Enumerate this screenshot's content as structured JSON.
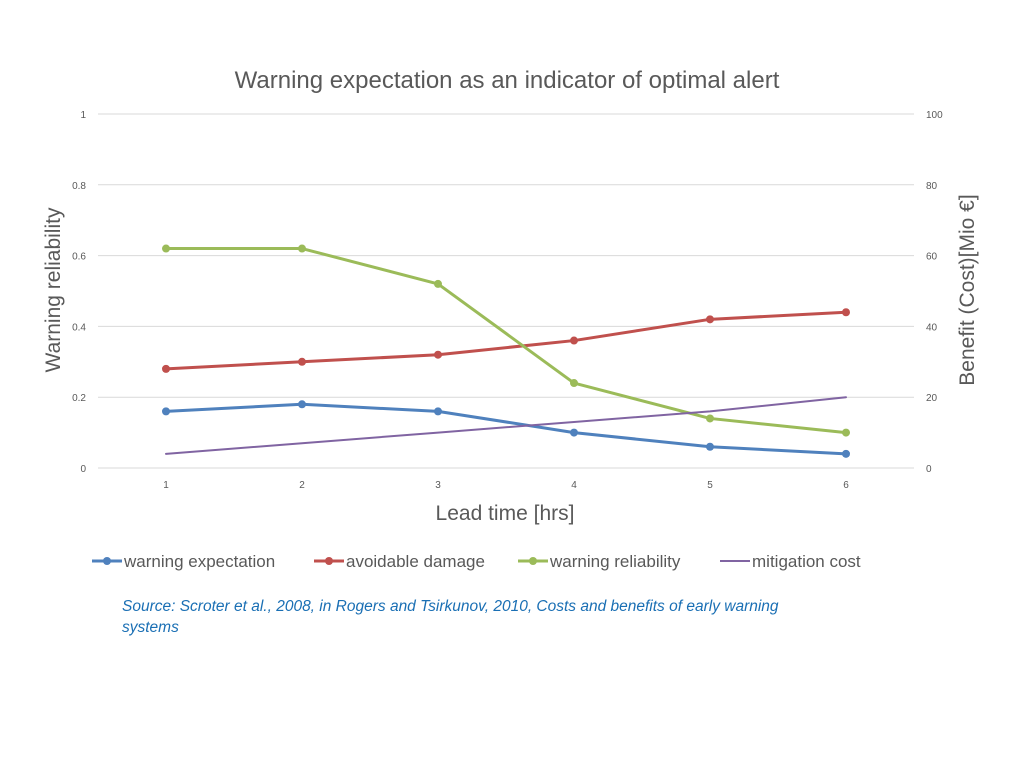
{
  "chart_data": {
    "type": "line",
    "title": "Warning expectation as an indicator of optimal alert",
    "xlabel": "Lead time [hrs]",
    "ylabel_left": "Warning reliability",
    "ylabel_right": "Benefit (Cost)[Mio €]",
    "categories": [
      "1",
      "2",
      "3",
      "4",
      "5",
      "6"
    ],
    "x": [
      1,
      2,
      3,
      4,
      5,
      6
    ],
    "ylim_left": [
      0,
      1
    ],
    "ylim_right": [
      0,
      100
    ],
    "yticks_left": [
      "0",
      "0.2",
      "0.4",
      "0.6",
      "0.8",
      "1"
    ],
    "yticks_right": [
      "0",
      "20",
      "40",
      "60",
      "80",
      "100"
    ],
    "grid": true,
    "legend_position": "bottom",
    "series": [
      {
        "name": "warning expectation",
        "axis": "left",
        "color": "#4f81bd",
        "markers": true,
        "values": [
          0.16,
          0.18,
          0.16,
          0.1,
          0.06,
          0.04
        ]
      },
      {
        "name": "avoidable damage",
        "axis": "left",
        "color": "#c0504d",
        "markers": true,
        "values": [
          0.28,
          0.3,
          0.32,
          0.36,
          0.42,
          0.44
        ]
      },
      {
        "name": "warning reliability",
        "axis": "left",
        "color": "#9bbb59",
        "markers": true,
        "values": [
          0.62,
          0.62,
          0.52,
          0.24,
          0.14,
          0.1
        ]
      },
      {
        "name": "mitigation cost",
        "axis": "right",
        "color": "#8064a2",
        "markers": false,
        "values": [
          4,
          7,
          10,
          13,
          16,
          20
        ]
      }
    ]
  },
  "source_note": "Source: Scroter et al., 2008, in Rogers and Tsirkunov, 2010, Costs and benefits of early warning systems"
}
